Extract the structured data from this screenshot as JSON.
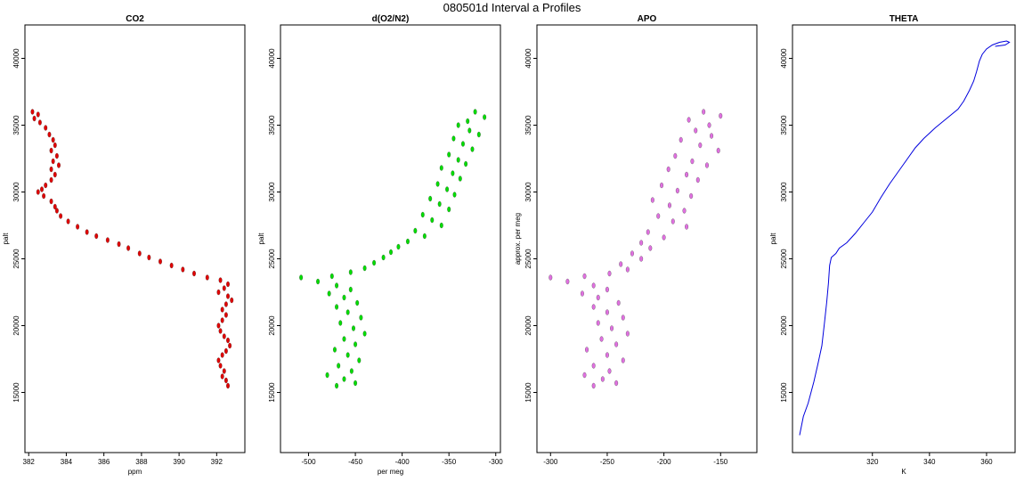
{
  "page_title": "080501d   Interval a Profiles",
  "chart_data": [
    {
      "type": "scatter",
      "title": "CO2",
      "xlabel": "ppm",
      "ylabel": "palt",
      "xlim": [
        381.8,
        393.5
      ],
      "ylim": [
        10500,
        42500
      ],
      "xticks": [
        "382",
        "384",
        "386",
        "388",
        "390",
        "392"
      ],
      "yticks": [
        "15000",
        "20000",
        "25000",
        "30000",
        "35000",
        "40000"
      ],
      "grid": false,
      "color": "#e00000",
      "series": [
        {
          "points": [
            [
              382.2,
              36000
            ],
            [
              382.5,
              35800
            ],
            [
              382.3,
              35500
            ],
            [
              382.6,
              35200
            ],
            [
              382.9,
              34800
            ],
            [
              383.1,
              34300
            ],
            [
              383.3,
              33900
            ],
            [
              383.4,
              33500
            ],
            [
              383.2,
              33100
            ],
            [
              383.5,
              32700
            ],
            [
              383.3,
              32300
            ],
            [
              383.6,
              32000
            ],
            [
              383.2,
              31700
            ],
            [
              383.4,
              31300
            ],
            [
              383.2,
              30900
            ],
            [
              382.9,
              30500
            ],
            [
              382.7,
              30200
            ],
            [
              382.5,
              30000
            ],
            [
              382.8,
              29700
            ],
            [
              383.2,
              29300
            ],
            [
              383.4,
              28900
            ],
            [
              383.5,
              28600
            ],
            [
              383.7,
              28200
            ],
            [
              384.1,
              27800
            ],
            [
              384.6,
              27400
            ],
            [
              385.1,
              27000
            ],
            [
              385.6,
              26700
            ],
            [
              386.2,
              26400
            ],
            [
              386.8,
              26100
            ],
            [
              387.3,
              25800
            ],
            [
              387.9,
              25400
            ],
            [
              388.4,
              25100
            ],
            [
              389.0,
              24800
            ],
            [
              389.6,
              24500
            ],
            [
              390.2,
              24200
            ],
            [
              390.8,
              23900
            ],
            [
              391.5,
              23600
            ],
            [
              392.2,
              23400
            ],
            [
              392.6,
              23100
            ],
            [
              392.4,
              22800
            ],
            [
              392.1,
              22500
            ],
            [
              392.6,
              22200
            ],
            [
              392.8,
              21900
            ],
            [
              392.5,
              21600
            ],
            [
              392.3,
              21200
            ],
            [
              392.5,
              20800
            ],
            [
              392.3,
              20400
            ],
            [
              392.1,
              20000
            ],
            [
              392.2,
              19600
            ],
            [
              392.4,
              19200
            ],
            [
              392.6,
              18900
            ],
            [
              392.7,
              18500
            ],
            [
              392.5,
              18100
            ],
            [
              392.3,
              17800
            ],
            [
              392.1,
              17400
            ],
            [
              392.2,
              17000
            ],
            [
              392.4,
              16600
            ],
            [
              392.3,
              16200
            ],
            [
              392.5,
              15900
            ],
            [
              392.6,
              15500
            ]
          ]
        }
      ]
    },
    {
      "type": "scatter",
      "title": "d(O2/N2)",
      "xlabel": "per meg",
      "ylabel": "palt",
      "xlim": [
        -530,
        -295
      ],
      "ylim": [
        10500,
        42500
      ],
      "xticks": [
        "-500",
        "-450",
        "-400",
        "-350",
        "-300"
      ],
      "yticks": [
        "15000",
        "20000",
        "25000",
        "30000",
        "35000",
        "40000"
      ],
      "grid": false,
      "color": "#00dd00",
      "series": [
        {
          "points": [
            [
              -322,
              36000
            ],
            [
              -312,
              35600
            ],
            [
              -330,
              35300
            ],
            [
              -340,
              35000
            ],
            [
              -328,
              34600
            ],
            [
              -318,
              34300
            ],
            [
              -345,
              34000
            ],
            [
              -335,
              33600
            ],
            [
              -325,
              33200
            ],
            [
              -350,
              32800
            ],
            [
              -340,
              32400
            ],
            [
              -332,
              32100
            ],
            [
              -358,
              31800
            ],
            [
              -346,
              31400
            ],
            [
              -338,
              31000
            ],
            [
              -362,
              30600
            ],
            [
              -352,
              30200
            ],
            [
              -344,
              29800
            ],
            [
              -370,
              29500
            ],
            [
              -360,
              29100
            ],
            [
              -350,
              28700
            ],
            [
              -378,
              28300
            ],
            [
              -368,
              27900
            ],
            [
              -358,
              27500
            ],
            [
              -386,
              27100
            ],
            [
              -376,
              26700
            ],
            [
              -394,
              26300
            ],
            [
              -404,
              25900
            ],
            [
              -412,
              25500
            ],
            [
              -420,
              25100
            ],
            [
              -430,
              24700
            ],
            [
              -440,
              24300
            ],
            [
              -455,
              24000
            ],
            [
              -475,
              23700
            ],
            [
              -508,
              23600
            ],
            [
              -490,
              23300
            ],
            [
              -470,
              23000
            ],
            [
              -455,
              22700
            ],
            [
              -478,
              22400
            ],
            [
              -462,
              22100
            ],
            [
              -448,
              21700
            ],
            [
              -470,
              21400
            ],
            [
              -458,
              21000
            ],
            [
              -444,
              20600
            ],
            [
              -466,
              20200
            ],
            [
              -452,
              19800
            ],
            [
              -440,
              19400
            ],
            [
              -462,
              19000
            ],
            [
              -450,
              18600
            ],
            [
              -472,
              18200
            ],
            [
              -458,
              17800
            ],
            [
              -446,
              17400
            ],
            [
              -468,
              17000
            ],
            [
              -454,
              16600
            ],
            [
              -480,
              16300
            ],
            [
              -462,
              16000
            ],
            [
              -450,
              15700
            ],
            [
              -470,
              15500
            ]
          ]
        }
      ]
    },
    {
      "type": "scatter",
      "title": "APO",
      "xlabel": "",
      "ylabel": "approx. per meg",
      "xlim": [
        -312,
        -118
      ],
      "ylim": [
        10500,
        42500
      ],
      "xticks": [
        "-300",
        "-250",
        "-200",
        "-150"
      ],
      "yticks": [
        "15000",
        "20000",
        "25000",
        "30000",
        "35000",
        "40000"
      ],
      "grid": false,
      "color": "#e070e0",
      "series": [
        {
          "points": [
            [
              -165,
              36000
            ],
            [
              -150,
              35700
            ],
            [
              -178,
              35400
            ],
            [
              -160,
              35000
            ],
            [
              -172,
              34600
            ],
            [
              -158,
              34200
            ],
            [
              -185,
              33900
            ],
            [
              -168,
              33500
            ],
            [
              -152,
              33100
            ],
            [
              -190,
              32700
            ],
            [
              -175,
              32300
            ],
            [
              -162,
              32000
            ],
            [
              -196,
              31700
            ],
            [
              -180,
              31300
            ],
            [
              -170,
              30900
            ],
            [
              -202,
              30500
            ],
            [
              -188,
              30100
            ],
            [
              -176,
              29700
            ],
            [
              -210,
              29400
            ],
            [
              -195,
              29000
            ],
            [
              -182,
              28600
            ],
            [
              -205,
              28200
            ],
            [
              -192,
              27800
            ],
            [
              -180,
              27400
            ],
            [
              -214,
              27000
            ],
            [
              -200,
              26600
            ],
            [
              -220,
              26200
            ],
            [
              -212,
              25800
            ],
            [
              -228,
              25400
            ],
            [
              -220,
              25000
            ],
            [
              -238,
              24600
            ],
            [
              -232,
              24200
            ],
            [
              -248,
              23900
            ],
            [
              -270,
              23700
            ],
            [
              -300,
              23600
            ],
            [
              -285,
              23300
            ],
            [
              -262,
              23000
            ],
            [
              -250,
              22700
            ],
            [
              -272,
              22400
            ],
            [
              -258,
              22100
            ],
            [
              -240,
              21700
            ],
            [
              -262,
              21400
            ],
            [
              -250,
              21000
            ],
            [
              -236,
              20600
            ],
            [
              -258,
              20200
            ],
            [
              -246,
              19800
            ],
            [
              -232,
              19400
            ],
            [
              -255,
              19000
            ],
            [
              -242,
              18600
            ],
            [
              -268,
              18200
            ],
            [
              -250,
              17800
            ],
            [
              -236,
              17400
            ],
            [
              -262,
              17000
            ],
            [
              -248,
              16600
            ],
            [
              -270,
              16300
            ],
            [
              -254,
              16000
            ],
            [
              -242,
              15700
            ],
            [
              -262,
              15500
            ]
          ]
        }
      ]
    },
    {
      "type": "line",
      "title": "THETA",
      "xlabel": "K",
      "ylabel": "palt",
      "xlim": [
        292,
        370
      ],
      "ylim": [
        10500,
        42500
      ],
      "xticks": [
        "320",
        "340",
        "360"
      ],
      "yticks": [
        "15000",
        "20000",
        "25000",
        "30000",
        "35000",
        "40000"
      ],
      "grid": false,
      "color": "#0000dd",
      "series": [
        {
          "points": [
            [
              294.5,
              11800
            ],
            [
              295.8,
              13200
            ],
            [
              297.5,
              14200
            ],
            [
              299.5,
              15800
            ],
            [
              301.0,
              17200
            ],
            [
              302.3,
              18500
            ],
            [
              303.2,
              20200
            ],
            [
              304.0,
              21800
            ],
            [
              304.6,
              23200
            ],
            [
              305.0,
              24500
            ],
            [
              305.6,
              25100
            ],
            [
              307.2,
              25400
            ],
            [
              308.4,
              25800
            ],
            [
              311.0,
              26200
            ],
            [
              314.0,
              26900
            ],
            [
              317.0,
              27700
            ],
            [
              320.0,
              28500
            ],
            [
              323.0,
              29600
            ],
            [
              326.0,
              30600
            ],
            [
              329.0,
              31500
            ],
            [
              332.0,
              32400
            ],
            [
              335.0,
              33300
            ],
            [
              338.0,
              34000
            ],
            [
              342.0,
              34800
            ],
            [
              346.0,
              35500
            ],
            [
              350.0,
              36200
            ],
            [
              352.0,
              36800
            ],
            [
              354.0,
              37600
            ],
            [
              355.5,
              38300
            ],
            [
              356.5,
              39000
            ],
            [
              357.5,
              39800
            ],
            [
              358.5,
              40300
            ],
            [
              360.0,
              40700
            ],
            [
              362.0,
              41000
            ],
            [
              364.5,
              41200
            ],
            [
              367.0,
              41300
            ],
            [
              368.0,
              41200
            ],
            [
              366.5,
              41000
            ],
            [
              363.0,
              40900
            ]
          ]
        }
      ]
    }
  ]
}
